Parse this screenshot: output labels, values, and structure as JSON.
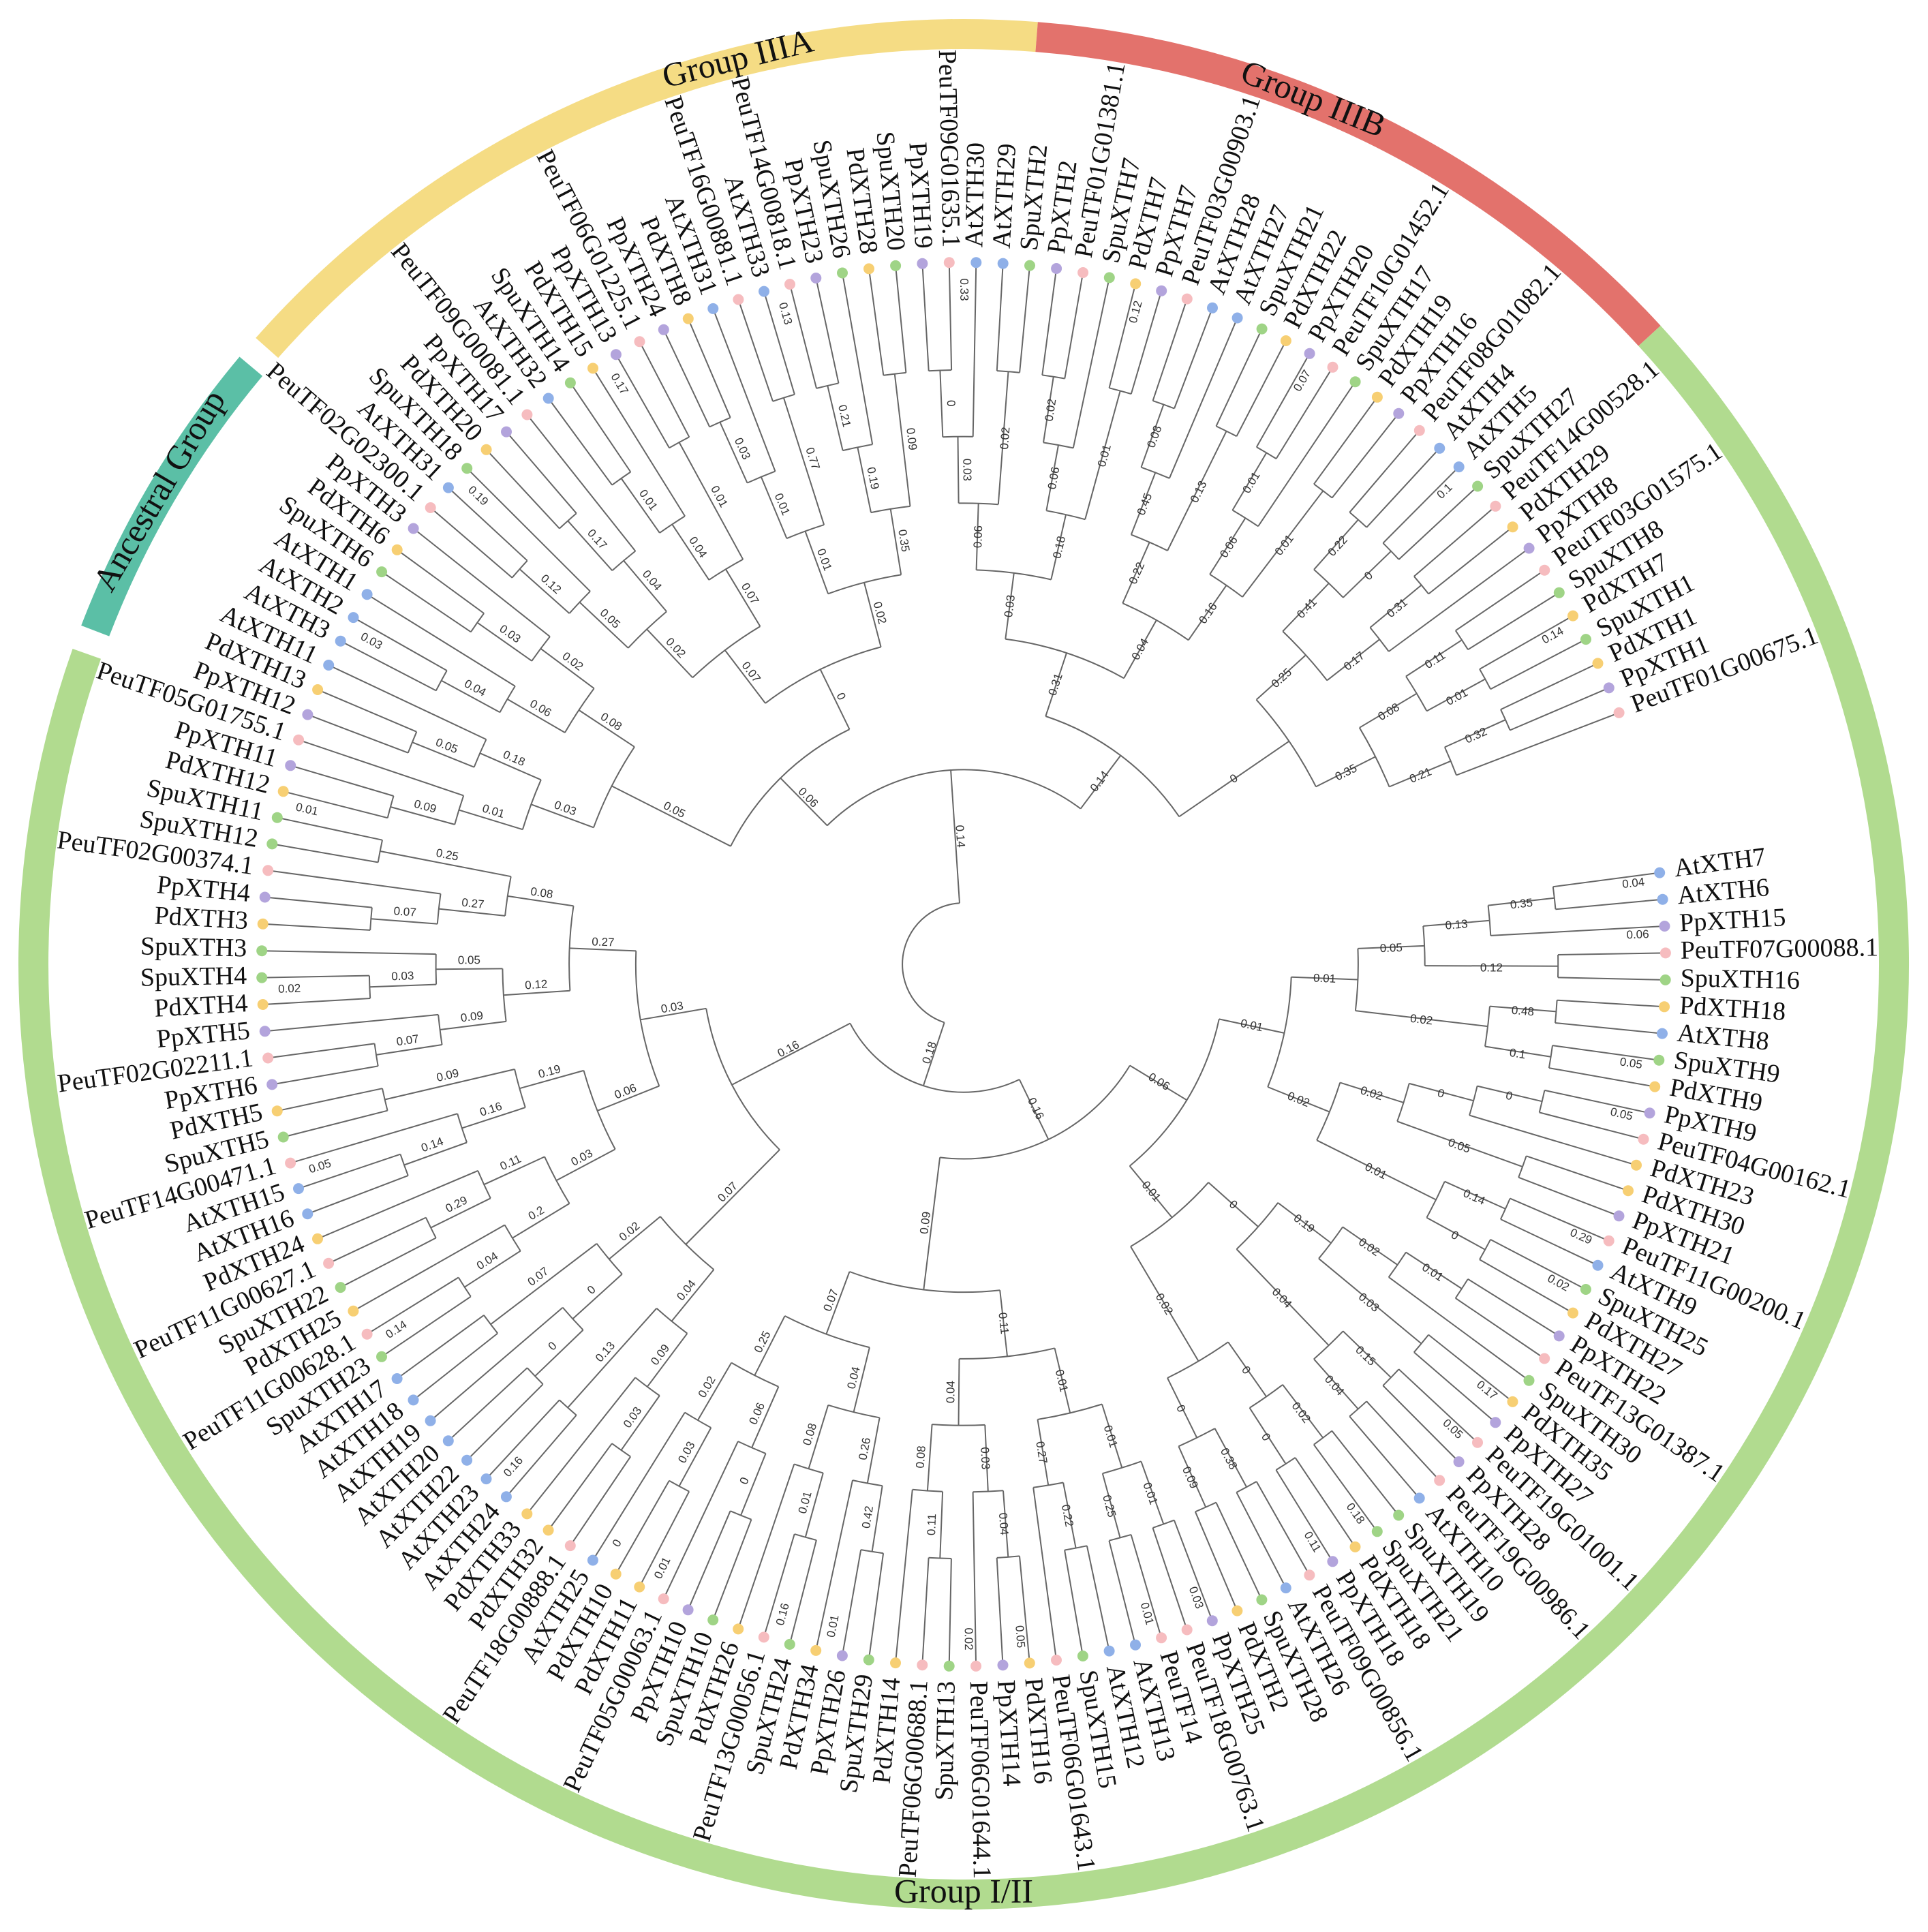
{
  "colors": {
    "ancestral": "#5bbfa6",
    "group_iiia": "#f5dc84",
    "group_iiib": "#e3726c",
    "group_i_ii": "#b1db8f",
    "At": "#8fb0e8",
    "Pp": "#b3a4dc",
    "Peu": "#f6bcbf",
    "Spu": "#9fd486",
    "Pd": "#f7cf73",
    "line": "#666666"
  },
  "groups": [
    {
      "key": "ancestral",
      "label": "Ancestral Group"
    },
    {
      "key": "group_iiia",
      "label": "Group IIIA"
    },
    {
      "key": "group_iiib",
      "label": "Group IIIB"
    },
    {
      "key": "group_i_ii",
      "label": "Group I/II"
    }
  ],
  "leaves": [
    "AtXTH7",
    "AtXTH6",
    "PpXTH15",
    "PeuTF07G00088.1",
    "SpuXTH16",
    "PdXTH18",
    "AtXTH8",
    "SpuXTH9",
    "PdXTH9",
    "PpXTH9",
    "PeuTF04G00162.1",
    "PdXTH23",
    "PdXTH30",
    "PpXTH21",
    "PeuTF11G00200.1",
    "AtXTH9",
    "SpuXTH25",
    "PdXTH27",
    "PpXTH22",
    "PeuTF13G01387.1",
    "SpuXTH30",
    "PdXTH35",
    "PpXTH27",
    "PeuTF19G01001.1",
    "PpXTH28",
    "PeuTF19G00986.1",
    "AtXTH10",
    "SpuXTH19",
    "SpuXTH21",
    "PdXTH18",
    "PpXTH18",
    "PeuTF09G00856.1",
    "AtXTH26",
    "SpuXTH28",
    "PdXTH2",
    "PpXTH25",
    "PeuTF18G00763.1",
    "PeuTF14",
    "AtXTH13",
    "AtXTH12",
    "SpuXTH15",
    "PeuTF06G01643.1",
    "PdXTH16",
    "PpXTH14",
    "PeuTF06G01644.1",
    "SpuXTH13",
    "PeuTF06G00688.1",
    "PdXTH14",
    "SpuXTH29",
    "PpXTH26",
    "PdXTH34",
    "SpuXTH24",
    "PeuTF13G00056.1",
    "PdXTH26",
    "SpuXTH10",
    "PpXTH10",
    "PeuTF05G00063.1",
    "PdXTH11",
    "PdXTH10",
    "AtXTH25",
    "PeuTF18G00888.1",
    "PdXTH32",
    "PdXTH33",
    "AtXTH24",
    "AtXTH23",
    "AtXTH22",
    "AtXTH20",
    "AtXTH19",
    "AtXTH18",
    "AtXTH17",
    "SpuXTH23",
    "PeuTF11G00628.1",
    "PdXTH25",
    "SpuXTH22",
    "PeuTF11G00627.1",
    "PdXTH24",
    "AtXTH16",
    "AtXTH15",
    "PeuTF14G00471.1",
    "SpuXTH5",
    "PdXTH5",
    "PpXTH6",
    "PeuTF02G02211.1",
    "PpXTH5",
    "PdXTH4",
    "SpuXTH4",
    "SpuXTH3",
    "PdXTH3",
    "PpXTH4",
    "PeuTF02G00374.1",
    "SpuXTH12",
    "SpuXTH11",
    "PdXTH12",
    "PpXTH11",
    "PeuTF05G01755.1",
    "PpXTH12",
    "PdXTH13",
    "AtXTH11",
    "AtXTH3",
    "AtXTH2",
    "AtXTH1",
    "SpuXTH6",
    "PdXTH6",
    "PpXTH3",
    "PeuTF02G02300.1",
    "AtXTH31",
    "SpuXTH18",
    "PdXTH20",
    "PpXTH17",
    "PeuTF09G00081.1",
    "AtXTH32",
    "SpuXTH14",
    "PdXTH15",
    "PpXTH13",
    "PeuTF06G01225.1",
    "PpXTH24",
    "PdXTH8",
    "AtXTH31",
    "PeuTF16G00881.1",
    "AtXTH33",
    "PeuTF14G00818.1",
    "PpXTH23",
    "SpuXTH26",
    "PdXTH28",
    "SpuXTH20",
    "PpXTH19",
    "PeuTF09G01635.1",
    "AtXTH30",
    "AtXTH29",
    "SpuXTH2",
    "PpXTH2",
    "PeuTF01G01381.1",
    "SpuXTH7",
    "PdXTH7",
    "PpXTH7",
    "PeuTF03G00903.1",
    "AtXTH28",
    "AtXTH27",
    "SpuXTH21",
    "PdXTH22",
    "PpXTH20",
    "PeuTF10G01452.1",
    "SpuXTH17",
    "PdXTH19",
    "PpXTH16",
    "PeuTF08G01082.1",
    "AtXTH4",
    "AtXTH5",
    "SpuXTH27",
    "PeuTF14G00528.1",
    "PdXTH29",
    "PpXTH8",
    "PeuTF03G01575.1",
    "SpuXTH8",
    "PdXTH7",
    "SpuXTH1",
    "PdXTH1",
    "PpXTH1",
    "PeuTF01G00675.1"
  ],
  "support_values": [
    "0.18",
    "0.16",
    "0.06",
    "0.01",
    "0.01",
    "0.05",
    "0.13",
    "0.35",
    "0.12",
    "0.02",
    "0.48",
    "0.1",
    "0.02",
    "0.02",
    "0",
    "0",
    "0.05",
    "0.01",
    "0.14",
    "0",
    "0.01",
    "0",
    "0.19",
    "0.02",
    "0.01",
    "0.03",
    "0.04",
    "0.15",
    "0.04",
    "0.02",
    "0",
    "0.02",
    "0",
    "0",
    "0.38",
    "0.09",
    "0.09",
    "0.11",
    "0.01",
    "0.01",
    "0.01",
    "0.25",
    "0.27",
    "0.22",
    "0.04",
    "0.03",
    "0.04",
    "0.08",
    "0.11",
    "0.07",
    "0.04",
    "0.26",
    "0.42",
    "0.08",
    "0.01",
    "0.25",
    "0.06",
    "0",
    "0.02",
    "0.03",
    "0.16",
    "0.07",
    "0.04",
    "0.09",
    "0.03",
    "0.13",
    "0.02",
    "0",
    "0",
    "0.07",
    "0.03",
    "0.06",
    "0.03",
    "0.2",
    "0.04",
    "0.11",
    "0.29",
    "0.19",
    "0.16",
    "0.14",
    "0.09",
    "0.27",
    "0.12",
    "0.09",
    "0.07",
    "0.05",
    "0.03",
    "0.08",
    "0.27",
    "0.07",
    "0.25",
    "0.14",
    "0.06",
    "0.05",
    "0.03",
    "0.01",
    "0.09",
    "0.18",
    "0.05",
    "0.08",
    "0.06",
    "0.04",
    "0.02",
    "0.03",
    "0",
    "0.07",
    "0.02",
    "0.05",
    "0.12",
    "0.04",
    "0.17",
    "0.07",
    "0.04",
    "0.01",
    "0.01",
    "0.02",
    "0.01",
    "0.01",
    "0.03",
    "0.77",
    "0.35",
    "0.19",
    "0.21",
    "0.09",
    "0.14",
    "0.31",
    "0.03",
    "0.06",
    "0.03",
    "0",
    "0.02",
    "0.18",
    "0.06",
    "0.02",
    "0.01",
    "0.04",
    "0.22",
    "0.45",
    "0.08",
    "0.13",
    "0.16",
    "0.06",
    "0.01",
    "0.01",
    "0",
    "0.25",
    "0.41",
    "0.22",
    "0",
    "0.17",
    "0.31",
    "0.35",
    "0.08",
    "0.11",
    "0.01",
    "0.21",
    "0.32",
    "0.04",
    "0.05",
    "0.29",
    "0.17",
    "0.18",
    "0.03",
    "0.05",
    "0.01",
    "0.01",
    "0.16",
    "0.14",
    "0.05",
    "0.02",
    "0.01",
    "0.03",
    "0.19",
    "0.17",
    "0.13",
    "0.33",
    "0.12",
    "0.07",
    "0.1",
    "0.14",
    "0.06",
    "0.05",
    "0.02",
    "0.05",
    "0.11",
    "0.01",
    "0.02",
    "0.16",
    "0"
  ]
}
